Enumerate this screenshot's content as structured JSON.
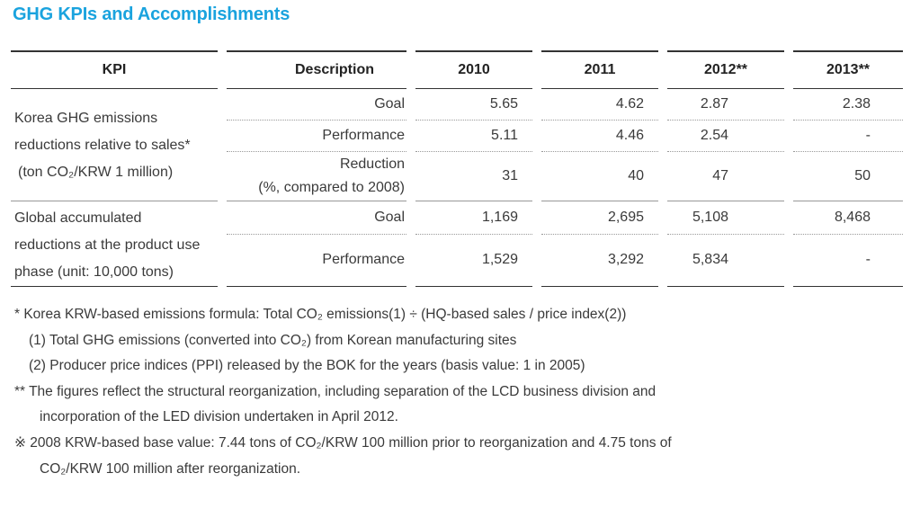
{
  "title": "GHG KPIs and Accomplishments",
  "table": {
    "headers": [
      "KPI",
      "Description",
      "2010",
      "2011",
      "2012**",
      "2013**"
    ],
    "section1": {
      "kpi_lines": [
        "Korea GHG emissions",
        "reductions relative to sales*",
        "(ton CO₂/KRW 1 million)"
      ],
      "rows": [
        {
          "desc": "Goal",
          "v2010": "5.65",
          "v2011": "4.62",
          "v2012": "2.87",
          "v2013": "2.38"
        },
        {
          "desc": "Performance",
          "v2010": "5.11",
          "v2011": "4.46",
          "v2012": "2.54",
          "v2013": "-"
        },
        {
          "desc_line1": "Reduction",
          "desc_line2": "(%, compared to 2008)",
          "v2010": "31",
          "v2011": "40",
          "v2012": "47",
          "v2013": "50"
        }
      ]
    },
    "section2": {
      "kpi_lines": [
        "Global accumulated",
        "reductions at the product use",
        "phase (unit: 10,000 tons)"
      ],
      "rows": [
        {
          "desc": "Goal",
          "v2010": "1,169",
          "v2011": "2,695",
          "v2012": "5,108",
          "v2013": "8,468"
        },
        {
          "desc": "Performance",
          "v2010": "1,529",
          "v2011": "3,292",
          "v2012": "5,834",
          "v2013": "-"
        }
      ]
    }
  },
  "notes": [
    "* Korea KRW-based emissions formula: Total CO₂ emissions(1) ÷ (HQ-based sales / price index(2))",
    "(1) Total GHG emissions (converted into CO₂) from Korean manufacturing sites",
    "(2) Producer price indices (PPI) released by the BOK for the years (basis value: 1 in 2005)",
    "** The figures reflect the structural reorganization, including separation of the LCD business division and",
    "incorporation of the LED division undertaken in April 2012.",
    "※ 2008 KRW-based base value: 7.44 tons of CO₂/KRW 100 million prior to reorganization and 4.75 tons of",
    "CO₂/KRW 100 million after reorganization."
  ]
}
